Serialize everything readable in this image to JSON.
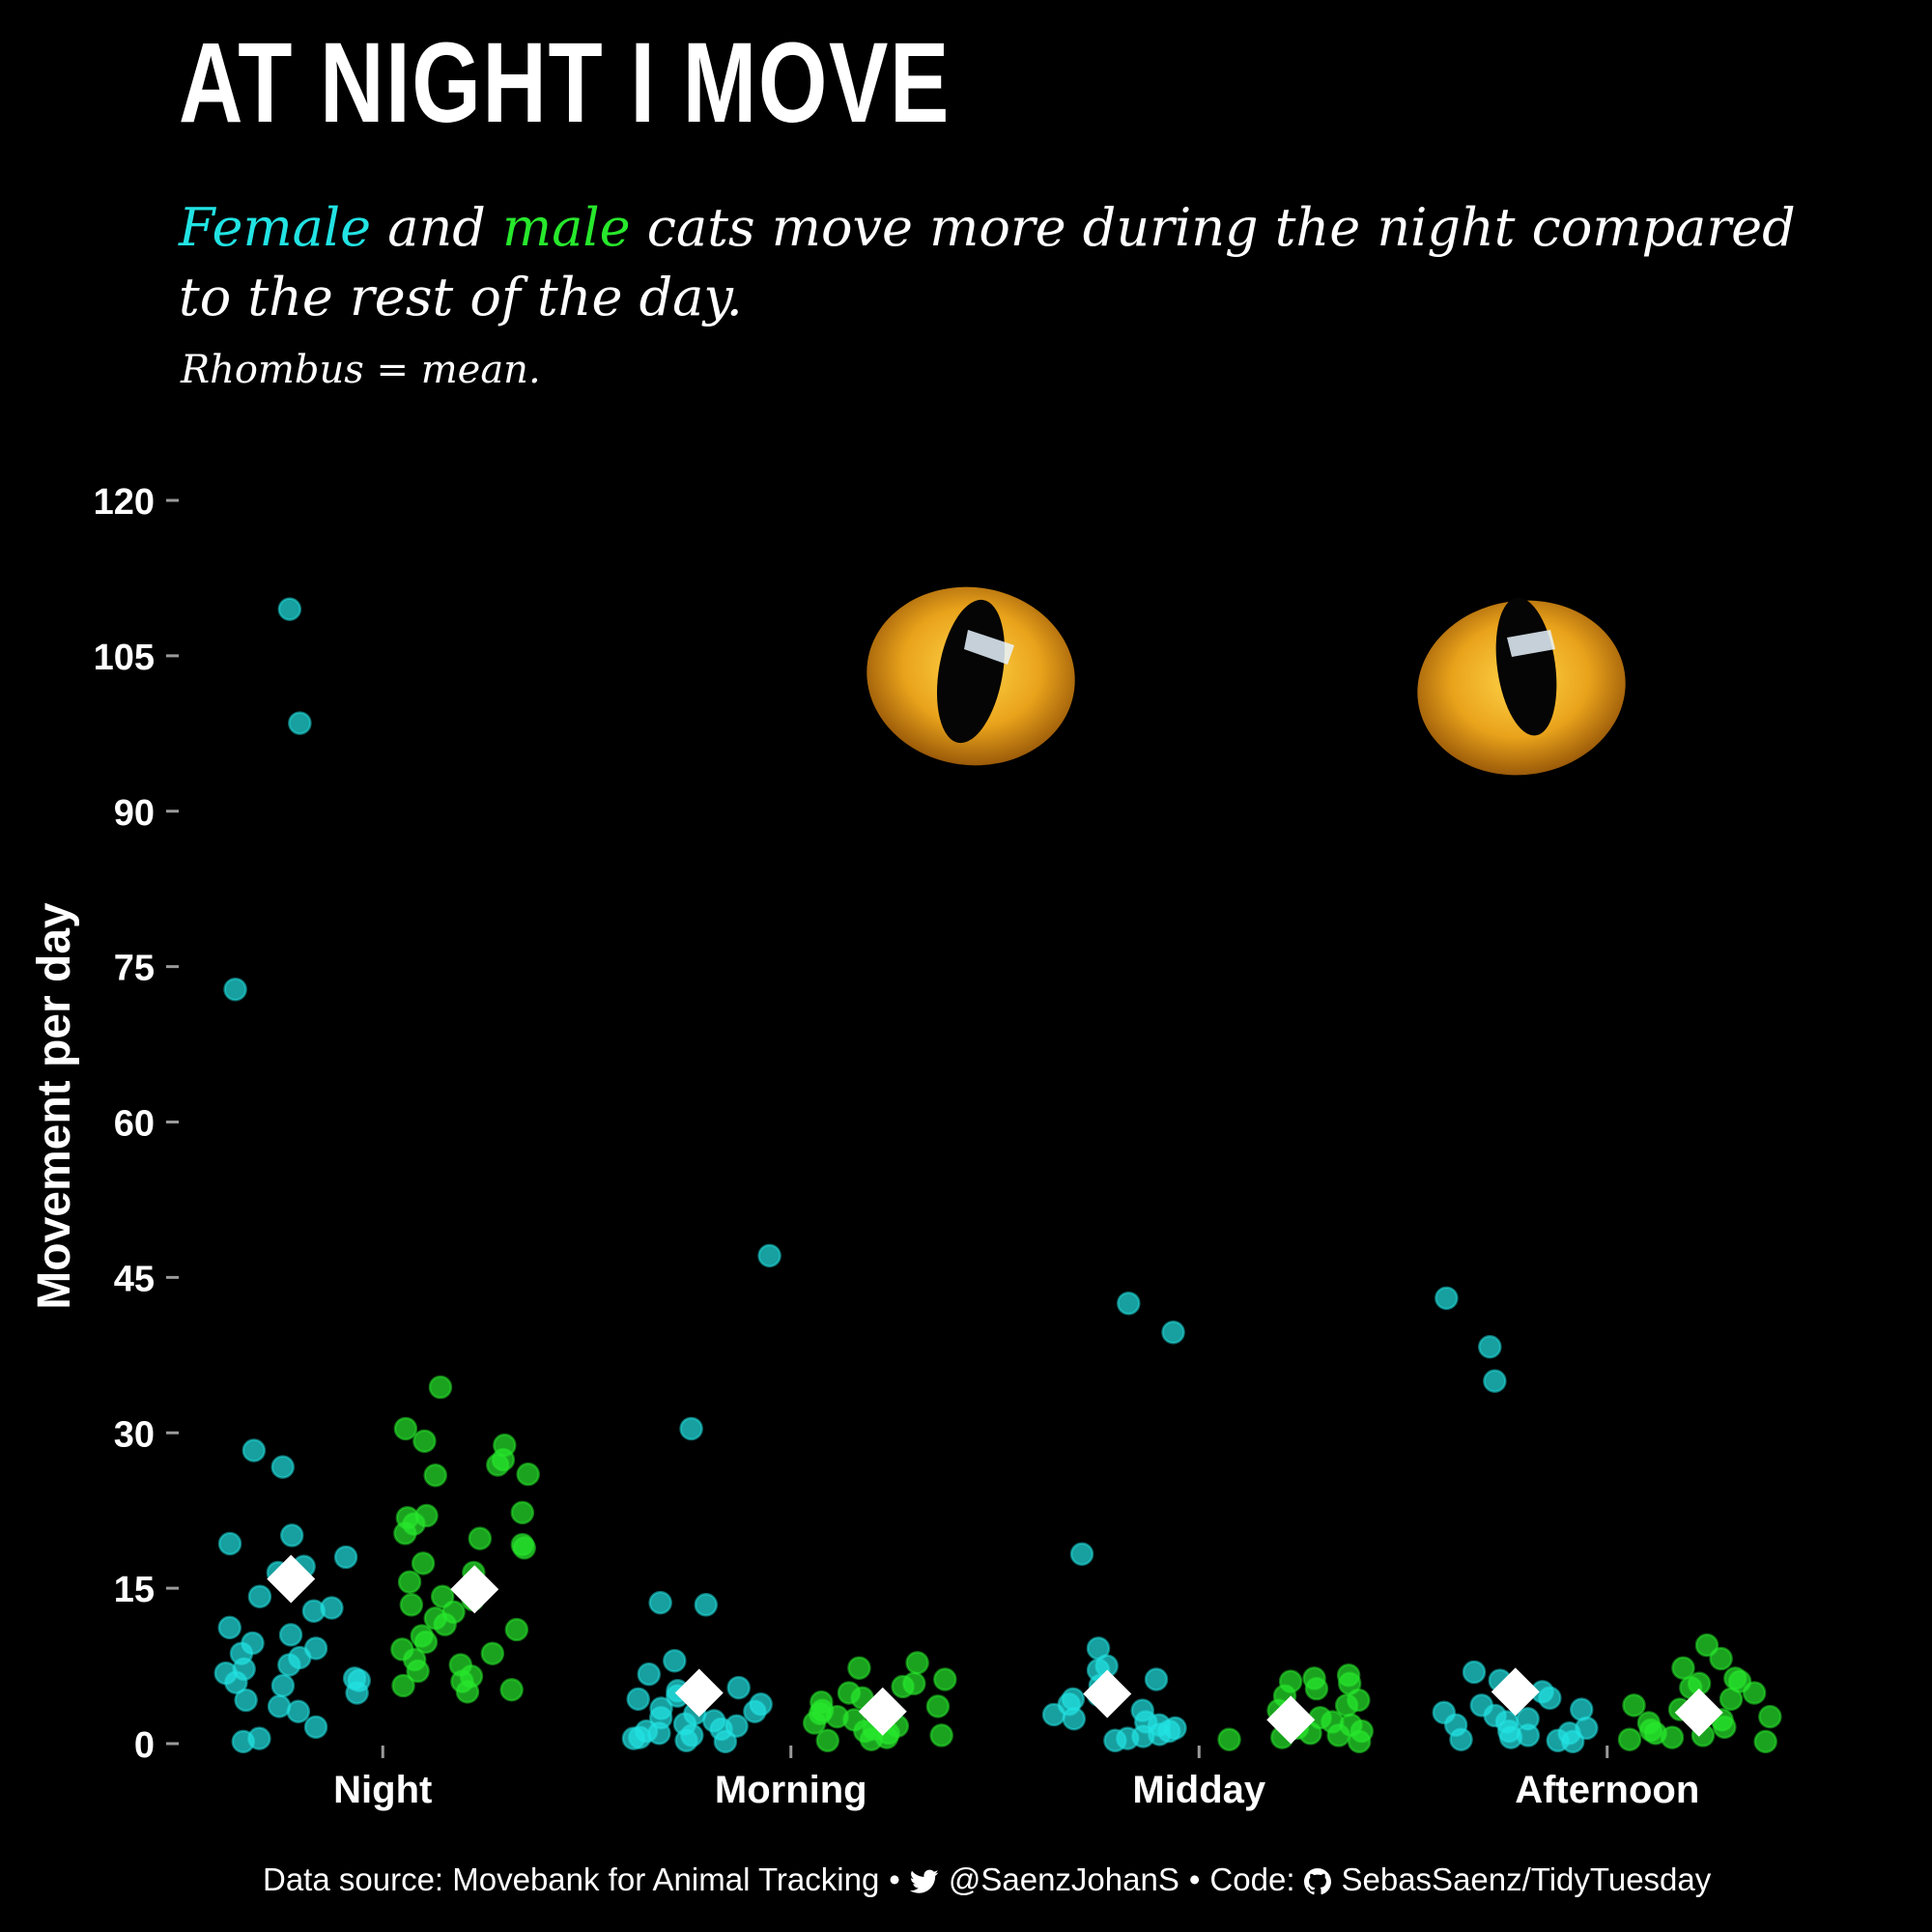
{
  "title": "AT NIGHT I MOVE",
  "subtitle": {
    "female_word": "Female",
    "and_word": " and ",
    "male_word": "male",
    "rest": " cats move more during the night compared to the rest of the day."
  },
  "note": "Rhombus = mean.",
  "caption": {
    "source": "Data source: Movebank for Animal Tracking",
    "sep": "•",
    "twitter": "@SaenzJohanS",
    "code_label": "Code:",
    "github": "SebasSaenz/TidyTuesday",
    "twitter_icon": "twitter-icon",
    "github_icon": "github-icon"
  },
  "colors": {
    "background": "#000000",
    "female": "#22e3e3",
    "male": "#27e82c",
    "mean": "#ffffff",
    "eye": "#e8a21a"
  },
  "chart_data": {
    "type": "scatter",
    "xlabel": "",
    "ylabel": "Movement per day",
    "categories": [
      "Night",
      "Morning",
      "Midday",
      "Afternoon"
    ],
    "ylim": [
      0,
      120
    ],
    "yticks": [
      0,
      15,
      30,
      45,
      60,
      75,
      90,
      105,
      120
    ],
    "grid": false,
    "background_image": "cat-eyes",
    "series": [
      {
        "name": "Female",
        "points": {
          "Night": [
            109.5,
            98.5,
            72.8,
            28.3,
            26.7,
            20.1,
            19.3,
            18.0,
            17.1,
            16.5,
            14.2,
            13.1,
            12.8,
            11.2,
            10.5,
            9.7,
            9.2,
            8.7,
            8.3,
            7.6,
            7.2,
            6.8,
            6.3,
            6.1,
            5.9,
            5.6,
            4.9,
            4.2,
            3.6,
            3.1,
            1.6,
            0.5,
            0.2
          ],
          "Morning": [
            47.1,
            30.4,
            13.6,
            13.4,
            8.0,
            6.7,
            5.4,
            5.1,
            4.6,
            4.3,
            3.8,
            3.4,
            3.1,
            2.9,
            2.5,
            2.2,
            1.9,
            1.7,
            1.4,
            1.2,
            1.0,
            0.8,
            0.6,
            0.5,
            0.3,
            0.2
          ],
          "Midday": [
            42.5,
            39.7,
            18.3,
            9.2,
            7.5,
            7.1,
            6.2,
            5.6,
            4.7,
            4.3,
            3.8,
            3.2,
            2.8,
            2.4,
            2.1,
            1.8,
            1.5,
            1.2,
            0.9,
            0.7,
            0.5,
            0.3
          ],
          "Afternoon": [
            43.0,
            38.3,
            35.0,
            6.9,
            6.1,
            5.0,
            4.4,
            3.7,
            3.3,
            3.0,
            2.7,
            2.4,
            2.1,
            1.8,
            1.5,
            1.2,
            1.0,
            0.8,
            0.6,
            0.4,
            0.3,
            0.2
          ]
        },
        "means": {
          "Night": 15.9,
          "Morning": 4.9,
          "Midday": 4.8,
          "Afternoon": 5.0
        }
      },
      {
        "name": "Male",
        "points": {
          "Night": [
            34.4,
            30.4,
            29.2,
            28.8,
            27.4,
            26.9,
            26.0,
            25.9,
            22.3,
            22.0,
            21.8,
            21.2,
            20.3,
            19.8,
            19.2,
            18.9,
            17.4,
            16.5,
            15.6,
            14.2,
            13.9,
            13.4,
            12.7,
            12.1,
            11.5,
            11.0,
            10.4,
            9.8,
            9.1,
            8.7,
            8.1,
            7.6,
            7.0,
            6.5,
            6.0,
            5.6,
            5.2,
            5.0
          ],
          "Morning": [
            7.8,
            7.3,
            6.2,
            5.8,
            5.5,
            4.9,
            4.4,
            4.0,
            3.6,
            3.2,
            2.9,
            2.6,
            2.3,
            2.0,
            1.7,
            1.4,
            1.2,
            1.0,
            0.8,
            0.6,
            0.4,
            0.3
          ],
          "Midday": [
            6.6,
            6.3,
            6.0,
            5.8,
            5.3,
            4.6,
            4.2,
            3.7,
            3.2,
            2.8,
            2.5,
            2.1,
            1.8,
            1.5,
            1.2,
            1.0,
            0.8,
            0.6,
            0.4,
            0.2
          ],
          "Afternoon": [
            9.5,
            8.2,
            7.3,
            6.3,
            6.0,
            5.8,
            5.4,
            4.9,
            4.3,
            3.7,
            3.3,
            3.0,
            2.6,
            2.3,
            2.0,
            1.6,
            1.3,
            1.0,
            0.8,
            0.6,
            0.4,
            0.2
          ]
        },
        "means": {
          "Night": 14.9,
          "Morning": 3.1,
          "Midday": 2.3,
          "Afternoon": 3.0
        }
      }
    ]
  }
}
